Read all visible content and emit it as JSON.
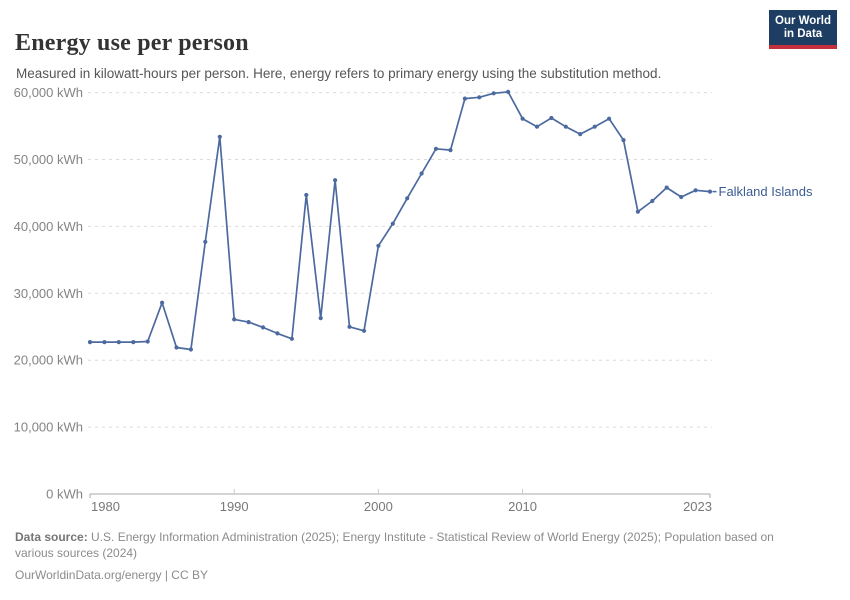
{
  "header": {
    "title": "Energy use per person",
    "subtitle": "Measured in kilowatt-hours per person. Here, energy refers to primary energy using the substitution method.",
    "logo": {
      "line1": "Our World",
      "line2": "in Data",
      "bg_color": "#1d3d63",
      "accent_color": "#c5303d"
    }
  },
  "chart_data": {
    "type": "line",
    "title": "Energy use per person",
    "xlabel": "",
    "ylabel": "kWh per person",
    "unit_suffix": " kWh",
    "grid": "horizontal-dashed",
    "legend_position": "end-of-line-label",
    "xlim": [
      1980,
      2023
    ],
    "ylim": [
      0,
      60000
    ],
    "xticks": [
      1980,
      1990,
      2000,
      2010,
      2023
    ],
    "yticks": [
      0,
      10000,
      20000,
      30000,
      40000,
      50000,
      60000
    ],
    "series": [
      {
        "name": "Falkland Islands",
        "color": "#4c6a9f",
        "label_color": "#3d5c94",
        "x": [
          1980,
          1981,
          1982,
          1983,
          1984,
          1985,
          1986,
          1987,
          1988,
          1989,
          1990,
          1991,
          1992,
          1993,
          1994,
          1995,
          1996,
          1997,
          1998,
          1999,
          2000,
          2001,
          2002,
          2003,
          2004,
          2005,
          2006,
          2007,
          2008,
          2009,
          2010,
          2011,
          2012,
          2013,
          2014,
          2015,
          2016,
          2017,
          2018,
          2019,
          2020,
          2021,
          2022,
          2023
        ],
        "values": [
          22700,
          22700,
          22700,
          22700,
          22800,
          28600,
          21900,
          21600,
          37700,
          53400,
          26100,
          25700,
          24900,
          24000,
          23200,
          44700,
          26300,
          46900,
          25000,
          24400,
          37100,
          40400,
          44200,
          47900,
          51600,
          51400,
          59100,
          59300,
          59900,
          60100,
          56100,
          54900,
          56200,
          54900,
          53800,
          54900,
          56100,
          52900,
          42200,
          43800,
          45800,
          44400,
          45400,
          45200
        ]
      }
    ]
  },
  "footer": {
    "source_label": "Data source:",
    "source_text": " U.S. Energy Information Administration (2025); Energy Institute - Statistical Review of World Energy (2025); Population based on various sources (2024)",
    "license_line": "OurWorldinData.org/energy | CC BY"
  }
}
